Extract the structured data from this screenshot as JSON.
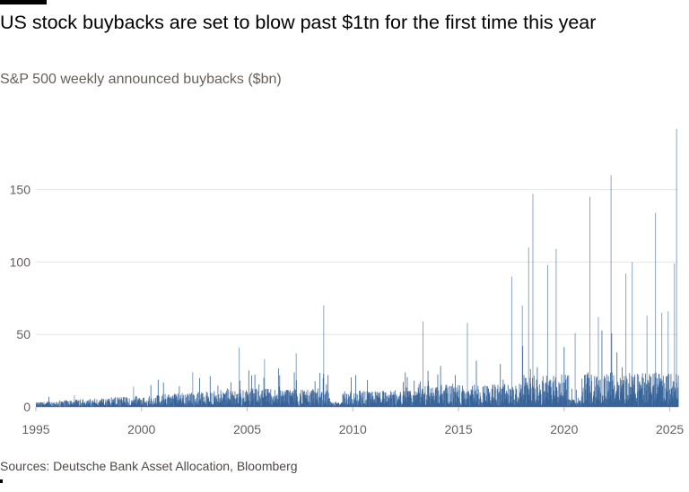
{
  "header": {
    "title": "US stock buybacks are set to blow past $1tn for the first time this year",
    "subtitle": "S&P 500 weekly announced buybacks ($bn)"
  },
  "footer": {
    "source": "Sources: Deutsche Bank Asset Allocation, Bloomberg"
  },
  "colors": {
    "bar": "#2f5d94",
    "grid": "#e8e6e4",
    "text_muted": "#66605c"
  },
  "chart_data": {
    "type": "bar",
    "title": "US stock buybacks are set to blow past $1tn for the first time this year",
    "subtitle": "S&P 500 weekly announced buybacks ($bn)",
    "xlabel": "",
    "ylabel": "",
    "xlim": [
      1995.0,
      2025.4
    ],
    "ylim": [
      0,
      190
    ],
    "x_ticks": [
      1995,
      2000,
      2005,
      2010,
      2015,
      2020,
      2025
    ],
    "y_ticks": [
      0,
      50,
      100,
      150
    ],
    "grid": true,
    "series": [
      {
        "values_note": "weekly values; notable peaks listed",
        "x": [
          1996.8,
          1999.6,
          2002.4,
          2004.6,
          2005.8,
          2007.3,
          2008.6,
          2013.3,
          2015.4,
          2017.5,
          2018.0,
          2018.3,
          2018.5,
          2019.2,
          2019.6,
          2020.5,
          2021.2,
          2021.6,
          2022.2,
          2022.9,
          2023.2,
          2023.9,
          2024.3,
          2024.6,
          2024.9,
          2025.2,
          2025.3
        ],
        "values": [
          8,
          14,
          24,
          41,
          33,
          37,
          70,
          59,
          58,
          90,
          70,
          110,
          147,
          98,
          109,
          51,
          145,
          62,
          160,
          92,
          100,
          63,
          134,
          65,
          66,
          99,
          192
        ]
      }
    ],
    "source": "Sources: Deutsche Bank Asset Allocation, Bloomberg"
  }
}
